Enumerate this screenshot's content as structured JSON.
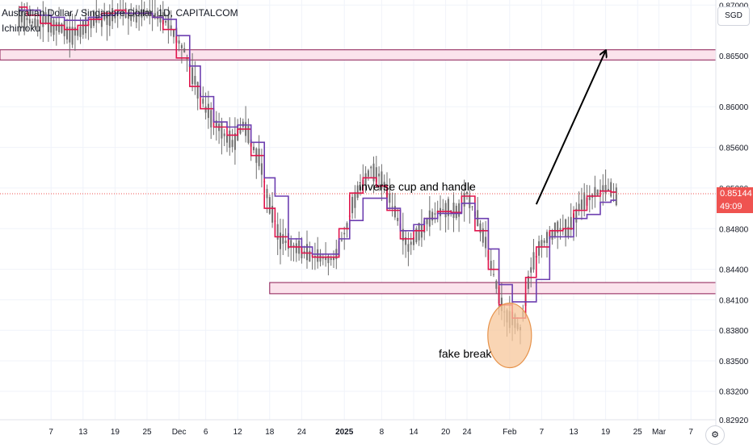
{
  "header": {
    "symbol_title": "Australian Dollar / Singapore Dollar, 1D, CAPITALCOM",
    "indicator_label": "Ichimoku",
    "currency_button": "SGD"
  },
  "price_labels": {
    "last_price": "0.85144",
    "countdown": "49:09"
  },
  "colors": {
    "candles": "#6f6f6f",
    "conversion_line": "#e0144c",
    "base_line": "#6d3fb0",
    "zone_fill": "#fbe3ec",
    "zone_border": "#8b1a52",
    "price_tag": "#ef5350",
    "annotation": "#000000",
    "fake_break_fill": "#f7c79b",
    "fake_break_border": "#e6924a"
  },
  "annotations": {
    "cup_text": "inverse cup and handle",
    "fake_break_text": "fake break"
  },
  "bottom_button": "⚙",
  "chart_data": {
    "type": "line",
    "title": "Australian Dollar / Singapore Dollar, 1D, CAPITALCOM",
    "y_ticks": [
      "0.87000",
      "0.86500",
      "0.86000",
      "0.85600",
      "0.85200",
      "0.84800",
      "0.84400",
      "0.84100",
      "0.83800",
      "0.83500",
      "0.83200",
      "0.82920"
    ],
    "x_ticks": [
      "7",
      "13",
      "19",
      "25",
      "Dec",
      "6",
      "12",
      "18",
      "24",
      "2025",
      "8",
      "14",
      "20",
      "24",
      "Feb",
      "7",
      "13",
      "19",
      "25",
      "Mar",
      "7"
    ],
    "ylim": [
      0.8292,
      0.8705
    ],
    "grid": true,
    "zones": [
      {
        "from": 0.8646,
        "to": 0.8656
      },
      {
        "from": 0.8416,
        "to": 0.8427
      }
    ],
    "projection_arrow": {
      "from": {
        "x": "2025-02-06",
        "y": 0.8504
      },
      "to": {
        "x": "2025-02-19",
        "y": 0.8655
      }
    },
    "fake_break_circle": {
      "x": "2025-02-01",
      "y": 0.8375
    },
    "last_price": 0.85144,
    "series": [
      {
        "name": "AUDSGD",
        "style": "candlestick-close",
        "x": [
          "2024-11-01",
          "2024-11-04",
          "2024-11-06",
          "2024-11-08",
          "2024-11-11",
          "2024-11-13",
          "2024-11-15",
          "2024-11-18",
          "2024-11-20",
          "2024-11-22",
          "2024-11-25",
          "2024-11-27",
          "2024-11-29",
          "2024-12-02",
          "2024-12-04",
          "2024-12-06",
          "2024-12-09",
          "2024-12-11",
          "2024-12-13",
          "2024-12-16",
          "2024-12-18",
          "2024-12-20",
          "2024-12-23",
          "2024-12-25",
          "2024-12-27",
          "2024-12-30",
          "2025-01-01",
          "2025-01-03",
          "2025-01-06",
          "2025-01-08",
          "2025-01-10",
          "2025-01-13",
          "2025-01-15",
          "2025-01-17",
          "2025-01-20",
          "2025-01-22",
          "2025-01-24",
          "2025-01-27",
          "2025-01-29",
          "2025-01-31",
          "2025-02-03",
          "2025-02-05",
          "2025-02-07",
          "2025-02-10",
          "2025-02-12",
          "2025-02-14",
          "2025-02-17",
          "2025-02-19",
          "2025-02-21"
        ],
        "values": [
          0.869,
          0.8682,
          0.8686,
          0.8678,
          0.8672,
          0.8676,
          0.8685,
          0.8688,
          0.8692,
          0.869,
          0.8694,
          0.8689,
          0.8682,
          0.8655,
          0.8625,
          0.8598,
          0.8575,
          0.8563,
          0.8582,
          0.8548,
          0.8505,
          0.847,
          0.8462,
          0.8455,
          0.8452,
          0.845,
          0.8475,
          0.851,
          0.854,
          0.853,
          0.8502,
          0.8462,
          0.8475,
          0.8492,
          0.85,
          0.8495,
          0.8515,
          0.8475,
          0.8435,
          0.8398,
          0.8382,
          0.844,
          0.8465,
          0.848,
          0.8478,
          0.85,
          0.8515,
          0.852,
          0.8514
        ]
      },
      {
        "name": "Conversion Line",
        "style": "step-line",
        "x": [
          "2024-11-01",
          "2024-11-04",
          "2024-11-06",
          "2024-11-08",
          "2024-11-11",
          "2024-11-13",
          "2024-11-15",
          "2024-11-18",
          "2024-11-20",
          "2024-11-22",
          "2024-11-25",
          "2024-11-27",
          "2024-11-29",
          "2024-12-02",
          "2024-12-04",
          "2024-12-06",
          "2024-12-09",
          "2024-12-11",
          "2024-12-13",
          "2024-12-16",
          "2024-12-18",
          "2024-12-20",
          "2024-12-23",
          "2024-12-25",
          "2024-12-27",
          "2024-12-30",
          "2025-01-01",
          "2025-01-03",
          "2025-01-06",
          "2025-01-08",
          "2025-01-10",
          "2025-01-13",
          "2025-01-15",
          "2025-01-17",
          "2025-01-20",
          "2025-01-22",
          "2025-01-24",
          "2025-01-27",
          "2025-01-29",
          "2025-01-31",
          "2025-02-03",
          "2025-02-05",
          "2025-02-07",
          "2025-02-10",
          "2025-02-12",
          "2025-02-14",
          "2025-02-17",
          "2025-02-19",
          "2025-02-21"
        ],
        "values": [
          0.8698,
          0.869,
          0.8682,
          0.868,
          0.8676,
          0.868,
          0.8686,
          0.8692,
          0.8695,
          0.8692,
          0.8692,
          0.8688,
          0.8676,
          0.8648,
          0.862,
          0.8598,
          0.858,
          0.8572,
          0.8578,
          0.8552,
          0.85,
          0.8472,
          0.8462,
          0.8456,
          0.8452,
          0.8452,
          0.848,
          0.8515,
          0.853,
          0.8522,
          0.8498,
          0.847,
          0.8478,
          0.849,
          0.8497,
          0.8496,
          0.8512,
          0.8478,
          0.844,
          0.8405,
          0.8392,
          0.8432,
          0.8462,
          0.8478,
          0.848,
          0.8498,
          0.8512,
          0.8517,
          0.8516
        ]
      },
      {
        "name": "Base Line",
        "style": "step-line",
        "x": [
          "2024-11-01",
          "2024-11-04",
          "2024-11-06",
          "2024-11-08",
          "2024-11-11",
          "2024-11-13",
          "2024-11-15",
          "2024-11-18",
          "2024-11-20",
          "2024-11-22",
          "2024-11-25",
          "2024-11-27",
          "2024-11-29",
          "2024-12-02",
          "2024-12-04",
          "2024-12-06",
          "2024-12-09",
          "2024-12-11",
          "2024-12-13",
          "2024-12-16",
          "2024-12-18",
          "2024-12-20",
          "2024-12-23",
          "2024-12-25",
          "2024-12-27",
          "2024-12-30",
          "2025-01-01",
          "2025-01-03",
          "2025-01-06",
          "2025-01-08",
          "2025-01-10",
          "2025-01-13",
          "2025-01-15",
          "2025-01-17",
          "2025-01-20",
          "2025-01-22",
          "2025-01-24",
          "2025-01-27",
          "2025-01-29",
          "2025-01-31",
          "2025-02-03",
          "2025-02-05",
          "2025-02-07",
          "2025-02-10",
          "2025-02-12",
          "2025-02-14",
          "2025-02-17",
          "2025-02-19",
          "2025-02-21"
        ],
        "values": [
          0.8695,
          0.8695,
          0.869,
          0.8688,
          0.8685,
          0.8685,
          0.8688,
          0.869,
          0.8692,
          0.8692,
          0.8692,
          0.8688,
          0.8686,
          0.867,
          0.864,
          0.861,
          0.8585,
          0.858,
          0.8582,
          0.8565,
          0.853,
          0.8512,
          0.847,
          0.8462,
          0.8455,
          0.8455,
          0.847,
          0.8488,
          0.851,
          0.851,
          0.85,
          0.8478,
          0.8484,
          0.849,
          0.8495,
          0.8495,
          0.8505,
          0.849,
          0.846,
          0.8425,
          0.8408,
          0.8408,
          0.843,
          0.8472,
          0.8472,
          0.849,
          0.8494,
          0.8506,
          0.8508
        ]
      }
    ]
  }
}
